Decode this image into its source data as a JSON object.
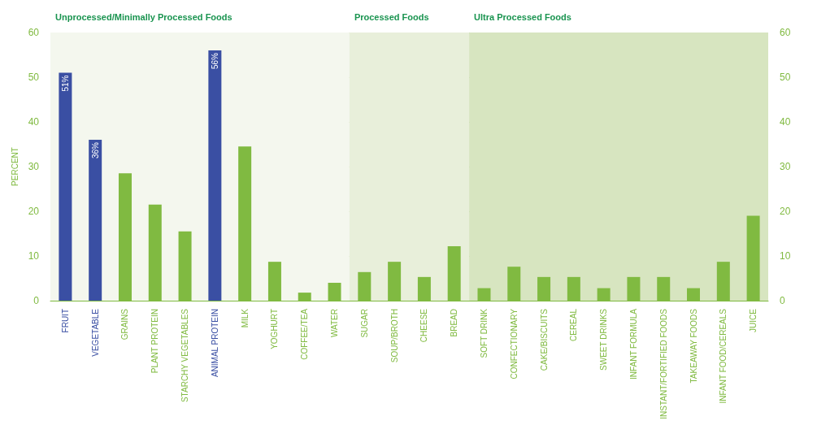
{
  "chart_data": {
    "type": "bar",
    "ylabel": "PERCENT",
    "categories": [
      "FRUIT",
      "VEGETABLE",
      "GRAINS",
      "PLANT PROTEIN",
      "STARCHY VEGETABLES",
      "ANIMAL PROTEIN",
      "MILK",
      "YOGHURT",
      "COFFEE/TEA",
      "WATER",
      "SUGAR",
      "SOUP/BROTH",
      "CHEESE",
      "BREAD",
      "SOFT DRINK",
      "CONFECTIONARY",
      "CAKE/BISCUITS",
      "CEREAL",
      "SWEET DRINKS",
      "INFANT FORMULA",
      "INSTANT/FORTIFIED FOODS",
      "TAKEAWAY FOODS",
      "INFANT FOOD/CEREALS",
      "JUICE"
    ],
    "values": [
      51,
      36,
      28.5,
      21.5,
      15.5,
      56,
      34.5,
      8.7,
      1.8,
      4,
      6.4,
      8.7,
      5.3,
      12.2,
      2.8,
      7.6,
      5.3,
      5.3,
      2.8,
      5.3,
      5.3,
      2.8,
      8.7,
      19
    ],
    "value_labels": [
      "51%",
      "36%",
      null,
      null,
      null,
      "56%",
      null,
      null,
      null,
      null,
      null,
      null,
      null,
      null,
      null,
      null,
      null,
      null,
      null,
      null,
      null,
      null,
      null,
      null
    ],
    "colors": [
      "#3a4fa3",
      "#3a4fa3",
      "#80ba41",
      "#80ba41",
      "#80ba41",
      "#3a4fa3",
      "#80ba41",
      "#80ba41",
      "#80ba41",
      "#80ba41",
      "#80ba41",
      "#80ba41",
      "#80ba41",
      "#80ba41",
      "#80ba41",
      "#80ba41",
      "#80ba41",
      "#80ba41",
      "#80ba41",
      "#80ba41",
      "#80ba41",
      "#80ba41",
      "#80ba41",
      "#80ba41"
    ],
    "ylim": [
      0,
      60
    ],
    "yticks": [
      0,
      10,
      20,
      30,
      40,
      50,
      60
    ],
    "y2lim": [
      0,
      60
    ],
    "y2ticks": [
      0,
      10,
      20,
      30,
      40,
      50,
      60
    ],
    "grid": "y",
    "bands": [
      {
        "axis": "x",
        "from": "FRUIT",
        "to": "WATER",
        "label": "Unprocessed/Minimally Processed Foods",
        "color": "#f4f7ee"
      },
      {
        "axis": "x",
        "from": "SUGAR",
        "to": "BREAD",
        "label": "Processed Foods",
        "color": "#e8efda"
      },
      {
        "axis": "x",
        "from": "SOFT DRINK",
        "to": "JUICE",
        "label": "Ultra Processed Foods",
        "color": "#d7e5c0"
      }
    ]
  }
}
